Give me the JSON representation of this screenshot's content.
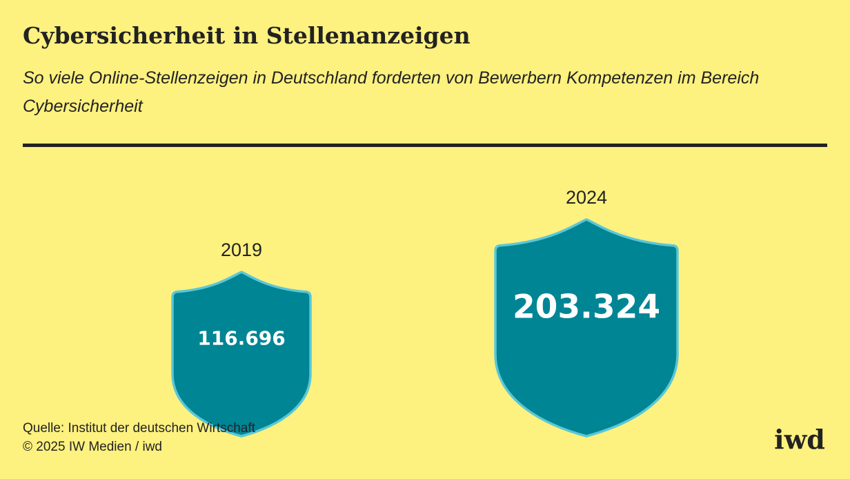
{
  "title": "Cybersicherheit in Stellenanzeigen",
  "subtitle": "So viele Online-Stellenzeigen in Deutschland forderten von Bewerbern Kompetenzen im Bereich Cybersicherheit",
  "source": "Quelle: Institut der deutschen Wirtschaft",
  "copyright": "© 2025 IW Medien / iwd",
  "logo": "iwd",
  "colors": {
    "background": "#fdf17f",
    "shield_fill": "#008595",
    "shield_outline": "#5bc7d6",
    "text": "#222222",
    "value_text": "#ffffff"
  },
  "chart_data": {
    "type": "bar",
    "categories": [
      "2019",
      "2024"
    ],
    "values": [
      116696,
      203324
    ],
    "value_labels": [
      "116.696",
      "203.324"
    ],
    "marker": "shield"
  }
}
